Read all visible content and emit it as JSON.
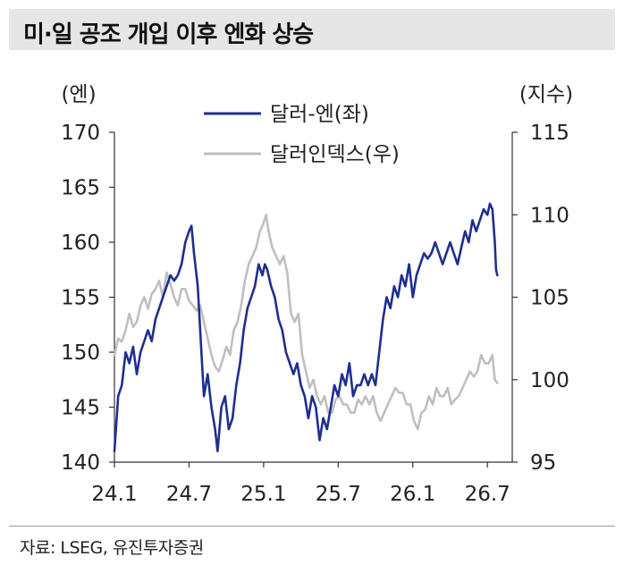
{
  "title": "미·일 공조 개입 이후 엔화 상승",
  "source": "자료: LSEG, 유진투자증권",
  "chart_data": {
    "type": "line",
    "left_axis": {
      "label": "(엔)",
      "min": 140,
      "max": 170,
      "ticks": [
        "140",
        "145",
        "150",
        "155",
        "160",
        "165",
        "170"
      ]
    },
    "right_axis": {
      "label": "(지수)",
      "min": 95,
      "max": 115,
      "ticks": [
        "95",
        "100",
        "105",
        "110",
        "115"
      ]
    },
    "x_axis": {
      "min": 0,
      "max": 32,
      "ticks": [
        {
          "pos": 0,
          "label": "24.1"
        },
        {
          "pos": 6,
          "label": "24.7"
        },
        {
          "pos": 12,
          "label": "25.1"
        },
        {
          "pos": 18,
          "label": "25.7"
        },
        {
          "pos": 24,
          "label": "26.1"
        },
        {
          "pos": 30,
          "label": "26.7"
        }
      ]
    },
    "legend": [
      "달러-엔(좌)",
      "달러인덱스(우)"
    ],
    "series": [
      {
        "name": "달러-엔(좌)",
        "axis": "left",
        "color": "#1f2f8f",
        "points": [
          [
            0,
            141
          ],
          [
            0.3,
            146
          ],
          [
            0.6,
            147
          ],
          [
            0.9,
            150
          ],
          [
            1.2,
            149
          ],
          [
            1.5,
            150.5
          ],
          [
            1.8,
            148
          ],
          [
            2.1,
            150
          ],
          [
            2.4,
            151
          ],
          [
            2.7,
            152
          ],
          [
            3.0,
            151
          ],
          [
            3.3,
            153
          ],
          [
            3.6,
            154
          ],
          [
            3.9,
            155
          ],
          [
            4.2,
            156
          ],
          [
            4.5,
            157
          ],
          [
            4.8,
            156.5
          ],
          [
            5.1,
            157
          ],
          [
            5.4,
            158
          ],
          [
            5.7,
            160
          ],
          [
            6.0,
            161
          ],
          [
            6.2,
            161.5
          ],
          [
            6.4,
            159
          ],
          [
            6.7,
            156
          ],
          [
            7.0,
            150
          ],
          [
            7.2,
            146
          ],
          [
            7.5,
            148
          ],
          [
            7.8,
            145
          ],
          [
            8.1,
            143
          ],
          [
            8.3,
            141
          ],
          [
            8.6,
            145
          ],
          [
            8.9,
            146
          ],
          [
            9.2,
            143
          ],
          [
            9.5,
            144
          ],
          [
            9.8,
            147
          ],
          [
            10.1,
            149
          ],
          [
            10.4,
            152
          ],
          [
            10.7,
            154
          ],
          [
            11.0,
            155
          ],
          [
            11.3,
            156
          ],
          [
            11.6,
            158
          ],
          [
            11.9,
            157
          ],
          [
            12.1,
            158
          ],
          [
            12.3,
            157.5
          ],
          [
            12.6,
            156
          ],
          [
            12.9,
            155
          ],
          [
            13.2,
            153
          ],
          [
            13.5,
            152
          ],
          [
            13.8,
            150
          ],
          [
            14.1,
            149
          ],
          [
            14.4,
            148
          ],
          [
            14.7,
            149
          ],
          [
            15.0,
            147
          ],
          [
            15.3,
            146
          ],
          [
            15.6,
            144
          ],
          [
            15.9,
            146
          ],
          [
            16.2,
            145
          ],
          [
            16.5,
            142
          ],
          [
            16.8,
            144
          ],
          [
            17.1,
            143
          ],
          [
            17.4,
            145
          ],
          [
            17.7,
            147
          ],
          [
            18.0,
            146
          ],
          [
            18.3,
            148
          ],
          [
            18.6,
            147
          ],
          [
            18.9,
            149
          ],
          [
            19.2,
            146
          ],
          [
            19.5,
            147
          ],
          [
            19.8,
            147
          ],
          [
            20.1,
            148
          ],
          [
            20.4,
            147
          ],
          [
            20.7,
            148
          ],
          [
            21.0,
            147
          ],
          [
            21.3,
            150
          ],
          [
            21.6,
            153
          ],
          [
            21.9,
            155
          ],
          [
            22.2,
            154
          ],
          [
            22.5,
            156
          ],
          [
            22.8,
            155
          ],
          [
            23.1,
            157
          ],
          [
            23.4,
            156
          ],
          [
            23.7,
            158
          ],
          [
            24.0,
            155
          ],
          [
            24.3,
            157
          ],
          [
            24.6,
            158
          ],
          [
            24.9,
            159
          ],
          [
            25.2,
            158.5
          ],
          [
            25.5,
            159
          ],
          [
            25.8,
            160
          ],
          [
            26.1,
            159
          ],
          [
            26.4,
            158
          ],
          [
            26.7,
            159
          ],
          [
            27.0,
            160
          ],
          [
            27.3,
            159
          ],
          [
            27.6,
            158
          ],
          [
            27.9,
            159.5
          ],
          [
            28.2,
            161
          ],
          [
            28.5,
            160
          ],
          [
            28.8,
            162
          ],
          [
            29.1,
            161
          ],
          [
            29.4,
            162
          ],
          [
            29.7,
            163
          ],
          [
            30.0,
            162.5
          ],
          [
            30.2,
            163.5
          ],
          [
            30.4,
            163
          ],
          [
            30.6,
            160
          ],
          [
            30.7,
            157.5
          ],
          [
            30.8,
            157
          ]
        ]
      },
      {
        "name": "달러인덱스(우)",
        "axis": "right",
        "color": "#bfbfbf",
        "points": [
          [
            0,
            101.5
          ],
          [
            0.3,
            102.5
          ],
          [
            0.6,
            102.3
          ],
          [
            0.9,
            103
          ],
          [
            1.2,
            104
          ],
          [
            1.5,
            103.2
          ],
          [
            1.8,
            103.5
          ],
          [
            2.1,
            104.5
          ],
          [
            2.4,
            105
          ],
          [
            2.7,
            104.3
          ],
          [
            3.0,
            105.2
          ],
          [
            3.3,
            105.5
          ],
          [
            3.6,
            106
          ],
          [
            3.9,
            105
          ],
          [
            4.2,
            106.5
          ],
          [
            4.5,
            105.8
          ],
          [
            4.8,
            105
          ],
          [
            5.1,
            104.5
          ],
          [
            5.4,
            105.5
          ],
          [
            5.7,
            105.5
          ],
          [
            6.0,
            104.8
          ],
          [
            6.3,
            104.5
          ],
          [
            6.6,
            104.2
          ],
          [
            6.9,
            104.5
          ],
          [
            7.2,
            103.5
          ],
          [
            7.5,
            102.5
          ],
          [
            7.8,
            101.5
          ],
          [
            8.1,
            100.8
          ],
          [
            8.4,
            100.5
          ],
          [
            8.7,
            101.2
          ],
          [
            9.0,
            102
          ],
          [
            9.3,
            101.5
          ],
          [
            9.6,
            103
          ],
          [
            9.9,
            103.5
          ],
          [
            10.2,
            104.5
          ],
          [
            10.5,
            106
          ],
          [
            10.8,
            107
          ],
          [
            11.1,
            107.5
          ],
          [
            11.4,
            108
          ],
          [
            11.7,
            109
          ],
          [
            12.0,
            109.5
          ],
          [
            12.2,
            110
          ],
          [
            12.4,
            109
          ],
          [
            12.7,
            108
          ],
          [
            13.0,
            107.5
          ],
          [
            13.3,
            107
          ],
          [
            13.6,
            107.5
          ],
          [
            13.9,
            106.5
          ],
          [
            14.2,
            104
          ],
          [
            14.5,
            103.5
          ],
          [
            14.8,
            104
          ],
          [
            15.1,
            101.5
          ],
          [
            15.4,
            100.5
          ],
          [
            15.7,
            99.5
          ],
          [
            16.0,
            100
          ],
          [
            16.3,
            99
          ],
          [
            16.6,
            98.5
          ],
          [
            16.9,
            99
          ],
          [
            17.2,
            98
          ],
          [
            17.5,
            98
          ],
          [
            17.8,
            98.8
          ],
          [
            18.1,
            99
          ],
          [
            18.4,
            98.5
          ],
          [
            18.7,
            98.5
          ],
          [
            19.0,
            98
          ],
          [
            19.3,
            98
          ],
          [
            19.6,
            98.8
          ],
          [
            19.9,
            98.5
          ],
          [
            20.2,
            99
          ],
          [
            20.5,
            98.5
          ],
          [
            20.8,
            99
          ],
          [
            21.1,
            98
          ],
          [
            21.4,
            97.5
          ],
          [
            21.7,
            98
          ],
          [
            22.0,
            98.5
          ],
          [
            22.3,
            99
          ],
          [
            22.6,
            99.5
          ],
          [
            22.9,
            99.2
          ],
          [
            23.2,
            99.2
          ],
          [
            23.5,
            98.5
          ],
          [
            23.8,
            98.5
          ],
          [
            24.1,
            97.5
          ],
          [
            24.4,
            97
          ],
          [
            24.7,
            98
          ],
          [
            25.0,
            98.2
          ],
          [
            25.3,
            99
          ],
          [
            25.6,
            98.5
          ],
          [
            25.9,
            99.5
          ],
          [
            26.2,
            99
          ],
          [
            26.5,
            99
          ],
          [
            26.8,
            99.5
          ],
          [
            27.1,
            98.5
          ],
          [
            27.4,
            98.8
          ],
          [
            27.7,
            99
          ],
          [
            28.0,
            99.5
          ],
          [
            28.3,
            100
          ],
          [
            28.6,
            100.5
          ],
          [
            28.9,
            100.2
          ],
          [
            29.2,
            100.5
          ],
          [
            29.5,
            101.5
          ],
          [
            29.8,
            101
          ],
          [
            30.1,
            101
          ],
          [
            30.4,
            101.5
          ],
          [
            30.6,
            100
          ],
          [
            30.8,
            99.8
          ]
        ]
      }
    ]
  }
}
